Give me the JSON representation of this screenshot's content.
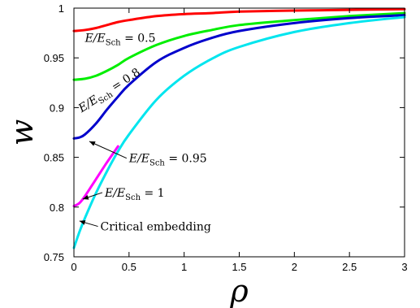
{
  "chart_data": {
    "type": "line",
    "xlabel": "ρ",
    "ylabel": "w",
    "xlim": [
      0,
      3
    ],
    "ylim": [
      0.75,
      1.0
    ],
    "x_ticks": [
      0,
      0.5,
      1,
      1.5,
      2,
      2.5,
      3
    ],
    "x_tick_labels": [
      "0",
      "0.5",
      "1",
      "1.5",
      "2",
      "2.5",
      "3"
    ],
    "y_ticks": [
      0.75,
      0.8,
      0.85,
      0.9,
      0.95,
      1.0
    ],
    "y_tick_labels": [
      "0.75",
      "0.8",
      "0.85",
      "0.9",
      "0.95",
      "1"
    ],
    "grid": false,
    "series": [
      {
        "color": "#ff0000",
        "x": [
          0,
          0.1,
          0.2,
          0.3,
          0.4,
          0.5,
          0.75,
          1.0,
          1.25,
          1.5,
          2.0,
          2.5,
          3.0
        ],
        "y": [
          0.977,
          0.978,
          0.98,
          0.983,
          0.986,
          0.988,
          0.992,
          0.994,
          0.995,
          0.9965,
          0.9975,
          0.9983,
          0.999
        ]
      },
      {
        "color": "#00ee00",
        "x": [
          0,
          0.1,
          0.2,
          0.3,
          0.4,
          0.5,
          0.75,
          1.0,
          1.25,
          1.5,
          2.0,
          2.5,
          3.0
        ],
        "y": [
          0.928,
          0.929,
          0.932,
          0.937,
          0.943,
          0.95,
          0.963,
          0.972,
          0.978,
          0.983,
          0.988,
          0.992,
          0.995
        ]
      },
      {
        "color": "#0000cc",
        "x": [
          0,
          0.05,
          0.1,
          0.2,
          0.3,
          0.4,
          0.5,
          0.75,
          1.0,
          1.25,
          1.5,
          2.0,
          2.5,
          3.0
        ],
        "y": [
          0.869,
          0.87,
          0.873,
          0.884,
          0.898,
          0.911,
          0.923,
          0.946,
          0.96,
          0.97,
          0.977,
          0.985,
          0.99,
          0.993
        ]
      },
      {
        "color": "#ff00ff",
        "x": [
          0,
          0.05,
          0.1,
          0.2,
          0.3,
          0.4
        ],
        "y": [
          0.801,
          0.804,
          0.811,
          0.828,
          0.845,
          0.861
        ]
      },
      {
        "color": "#00e5ee",
        "x": [
          0,
          0.05,
          0.1,
          0.2,
          0.3,
          0.4,
          0.5,
          0.75,
          1.0,
          1.25,
          1.5,
          2.0,
          2.5,
          3.0
        ],
        "y": [
          0.759,
          0.775,
          0.789,
          0.814,
          0.836,
          0.856,
          0.873,
          0.908,
          0.932,
          0.949,
          0.961,
          0.976,
          0.985,
          0.991
        ]
      }
    ],
    "annotations": [
      {
        "id": "e05",
        "text": "E/E_Sch = 0.5",
        "x": 0.1,
        "y": 0.966,
        "arrow": false
      },
      {
        "id": "e08",
        "text": "E/E_Sch = 0.8",
        "x": 0.07,
        "y": 0.895,
        "arrow": false,
        "rotate": -33
      },
      {
        "id": "e095",
        "text": "E/E_Sch = 0.95",
        "x": 0.5,
        "y": 0.845,
        "arrow": true,
        "arrow_to": [
          0.14,
          0.866
        ]
      },
      {
        "id": "e1",
        "text": "E/E_Sch = 1",
        "x": 0.28,
        "y": 0.8105,
        "arrow": true,
        "arrow_to": [
          0.08,
          0.808
        ]
      },
      {
        "id": "crit",
        "text": "Critical embedding",
        "x": 0.24,
        "y": 0.7765,
        "arrow": true,
        "arrow_to": [
          0.05,
          0.786
        ]
      }
    ]
  }
}
